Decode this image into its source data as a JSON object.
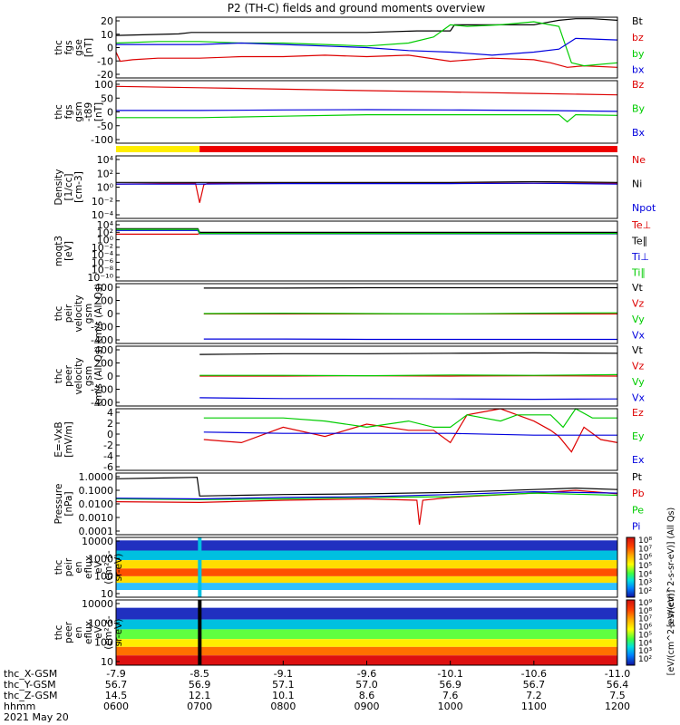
{
  "title": "P2 (TH-C) fields and ground moments overview",
  "chart_data": [
    {
      "type": "line",
      "ylabel": [
        "thc",
        "fgs",
        "gse",
        "[nT]"
      ],
      "ylim": [
        -20,
        20
      ],
      "yticks": [
        "20",
        "10",
        "0",
        "-10",
        "-20"
      ],
      "series": [
        {
          "name": "Bt",
          "color": "#000000",
          "x": [
            6.0,
            6.75,
            6.9,
            7.5,
            8.0,
            9.0,
            9.6,
            10.0,
            10.05,
            10.5,
            11.0,
            11.1,
            11.3,
            11.5,
            11.7,
            12.0
          ],
          "y": [
            8,
            9,
            10,
            10,
            10,
            10,
            11,
            11,
            15,
            15,
            15,
            16,
            18,
            19,
            19,
            18
          ]
        },
        {
          "name": "bz",
          "color": "#dd0000",
          "x": [
            6.0,
            6.05,
            6.2,
            6.5,
            7.0,
            7.5,
            8.0,
            8.5,
            9.0,
            9.5,
            10.0,
            10.5,
            11.0,
            11.2,
            11.4,
            11.6,
            12.0
          ],
          "y": [
            -3,
            -9,
            -8,
            -7,
            -7,
            -6,
            -6,
            -5,
            -6,
            -5,
            -9,
            -7,
            -8,
            -10,
            -13,
            -12,
            -13
          ]
        },
        {
          "name": "by",
          "color": "#00cc00",
          "x": [
            6.0,
            6.5,
            7.0,
            7.5,
            8.0,
            8.5,
            9.0,
            9.5,
            9.8,
            10.0,
            10.2,
            10.6,
            11.0,
            11.3,
            11.45,
            11.6,
            12.0
          ],
          "y": [
            3,
            4,
            4,
            3,
            3,
            2,
            1,
            3,
            7,
            15,
            14,
            15,
            17,
            14,
            -10,
            -12,
            -10
          ]
        },
        {
          "name": "bx",
          "color": "#0000dd",
          "x": [
            6.0,
            6.5,
            7.0,
            7.5,
            8.0,
            8.5,
            9.0,
            9.5,
            10.0,
            10.5,
            11.0,
            11.3,
            11.5,
            12.0
          ],
          "y": [
            2,
            2,
            2,
            3,
            2,
            1,
            0,
            -2,
            -3,
            -5,
            -3,
            -1,
            6,
            5
          ]
        }
      ]
    },
    {
      "type": "line",
      "ylabel": [
        "thc",
        "fgs",
        "gsm",
        "-t89",
        "[nT]"
      ],
      "ylim": [
        -120,
        100
      ],
      "yticks": [
        "100",
        "50",
        "0",
        "-50",
        "-100"
      ],
      "series": [
        {
          "name": "Bz",
          "color": "#dd0000",
          "x": [
            6.0,
            7.0,
            8.0,
            9.0,
            10.0,
            11.0,
            12.0
          ],
          "y": [
            80,
            75,
            70,
            65,
            60,
            55,
            50
          ]
        },
        {
          "name": "By",
          "color": "#00cc00",
          "x": [
            6.0,
            7.0,
            8.0,
            9.0,
            10.0,
            11.0,
            11.3,
            11.4,
            11.5,
            12.0
          ],
          "y": [
            -30,
            -30,
            -25,
            -20,
            -20,
            -20,
            -20,
            -45,
            -20,
            -22
          ]
        },
        {
          "name": "Bx",
          "color": "#0000dd",
          "x": [
            6.0,
            7.0,
            8.0,
            9.0,
            10.0,
            11.0,
            12.0
          ],
          "y": [
            -5,
            -5,
            -3,
            -2,
            -3,
            -5,
            -8
          ]
        }
      ]
    },
    {
      "type": "line",
      "scale": "log",
      "ylabel": [
        "Density",
        "[1/cc]",
        "[cm-3]"
      ],
      "ylim": [
        -4,
        4
      ],
      "yticks": [
        "10⁴",
        "10²",
        "10⁰",
        "10⁻²",
        "10⁻⁴"
      ],
      "series": [
        {
          "name": "Ne",
          "color": "#dd0000",
          "x": [
            6.0,
            6.95,
            7.0,
            7.05,
            7.1,
            7.2,
            8.0,
            9.0,
            10.0,
            11.0,
            12.0
          ],
          "y": [
            0.4,
            0.5,
            -2,
            0.3,
            0.5,
            0.5,
            0.5,
            0.5,
            0.5,
            0.5,
            0.5
          ]
        },
        {
          "name": "Ni",
          "color": "#000000",
          "x": [
            6.0,
            7.0,
            8.0,
            9.0,
            10.0,
            11.0,
            12.0
          ],
          "y": [
            0.6,
            0.6,
            0.6,
            0.6,
            0.6,
            0.7,
            0.6
          ]
        },
        {
          "name": "Npot",
          "color": "#0000dd",
          "x": [
            6.0,
            7.0,
            8.0,
            9.0,
            10.0,
            11.0,
            12.0
          ],
          "y": [
            0.4,
            0.4,
            0.45,
            0.45,
            0.45,
            0.5,
            0.4
          ]
        }
      ]
    },
    {
      "type": "line",
      "scale": "log",
      "ylabel": [
        "moqt3",
        "[eV]"
      ],
      "ylim": [
        -12,
        4
      ],
      "yticks": [
        "10⁴",
        "10²",
        "10⁰",
        "10⁻²",
        "10⁻⁴",
        "10⁻⁶",
        "10⁻⁸",
        "10⁻¹⁰"
      ],
      "series": [
        {
          "name": "Te⊥",
          "color": "#dd0000",
          "x": [
            6.0,
            6.98,
            7.0,
            12.0
          ],
          "y": [
            0.5,
            0.5,
            0.8,
            0.8
          ]
        },
        {
          "name": "Te∥",
          "color": "#000000",
          "x": [
            6.0,
            6.98,
            7.0,
            12.0
          ],
          "y": [
            2.0,
            2.0,
            1.0,
            1.0
          ]
        },
        {
          "name": "Ti⊥",
          "color": "#0000dd",
          "x": [
            6.0,
            6.98,
            7.0,
            12.0
          ],
          "y": [
            1.5,
            1.5,
            0.6,
            0.6
          ]
        },
        {
          "name": "Ti∥",
          "color": "#00cc00",
          "x": [
            6.0,
            6.98,
            7.0,
            12.0
          ],
          "y": [
            1.8,
            1.8,
            0.7,
            0.7
          ]
        }
      ]
    },
    {
      "type": "line",
      "ylabel": [
        "thc",
        "peir",
        "velocity",
        "gsm",
        "km/s (All Qs)"
      ],
      "ylim": [
        -400,
        400
      ],
      "yticks": [
        "400",
        "200",
        "0",
        "-200",
        "-400"
      ],
      "series": [
        {
          "name": "Vt",
          "color": "#000000",
          "x": [
            7.05,
            8.0,
            9.0,
            10.0,
            11.0,
            12.0
          ],
          "y": [
            340,
            340,
            345,
            345,
            345,
            345
          ]
        },
        {
          "name": "Vz",
          "color": "#dd0000",
          "x": [
            7.05,
            8.0,
            9.0,
            10.0,
            11.0,
            12.0
          ],
          "y": [
            -5,
            -5,
            -5,
            -5,
            -5,
            -5
          ]
        },
        {
          "name": "Vy",
          "color": "#00cc00",
          "x": [
            7.05,
            8.0,
            9.0,
            10.0,
            11.0,
            12.0
          ],
          "y": [
            0,
            5,
            0,
            -5,
            5,
            10
          ]
        },
        {
          "name": "Vx",
          "color": "#0000dd",
          "x": [
            7.05,
            8.0,
            9.0,
            10.0,
            11.0,
            12.0
          ],
          "y": [
            -340,
            -340,
            -345,
            -345,
            -345,
            -345
          ]
        }
      ]
    },
    {
      "type": "line",
      "ylabel": [
        "thc",
        "peer",
        "velocity",
        "gsm",
        "km/s (All Qs)"
      ],
      "ylim": [
        -400,
        400
      ],
      "yticks": [
        "400",
        "200",
        "0",
        "-200",
        "-400"
      ],
      "series": [
        {
          "name": "Vt",
          "color": "#000000",
          "x": [
            7.0,
            8.0,
            9.0,
            10.0,
            11.0,
            12.0
          ],
          "y": [
            290,
            300,
            300,
            305,
            310,
            305
          ]
        },
        {
          "name": "Vz",
          "color": "#dd0000",
          "x": [
            7.0,
            8.0,
            9.0,
            10.0,
            11.0,
            12.0
          ],
          "y": [
            0,
            0,
            5,
            0,
            5,
            0
          ]
        },
        {
          "name": "Vy",
          "color": "#00cc00",
          "x": [
            7.0,
            8.0,
            9.0,
            10.0,
            11.0,
            12.0
          ],
          "y": [
            10,
            10,
            5,
            15,
            10,
            20
          ]
        },
        {
          "name": "Vx",
          "color": "#0000dd",
          "x": [
            7.0,
            8.0,
            9.0,
            10.0,
            11.0,
            12.0
          ],
          "y": [
            -290,
            -300,
            -300,
            -305,
            -310,
            -305
          ]
        }
      ]
    },
    {
      "type": "line",
      "ylabel": [
        "E=-VxB",
        "[mV/m]"
      ],
      "ylim": [
        -6,
        4
      ],
      "yticks": [
        "4",
        "2",
        "0",
        "-2",
        "-4",
        "-6"
      ],
      "series": [
        {
          "name": "Ez",
          "color": "#dd0000",
          "x": [
            7.05,
            7.5,
            8.0,
            8.5,
            9.0,
            9.5,
            9.8,
            10.0,
            10.2,
            10.4,
            10.6,
            10.8,
            11.0,
            11.2,
            11.3,
            11.45,
            11.6,
            11.8,
            12.0
          ],
          "y": [
            -1,
            -1.5,
            1,
            -0.5,
            1.5,
            0.5,
            0.5,
            -1.5,
            3,
            3.5,
            4,
            3,
            2,
            0.5,
            -0.5,
            -3,
            1,
            -1,
            -1.5
          ]
        },
        {
          "name": "Ey",
          "color": "#00cc00",
          "x": [
            7.05,
            7.5,
            8.0,
            8.5,
            9.0,
            9.5,
            9.8,
            10.0,
            10.2,
            10.4,
            10.6,
            10.8,
            11.0,
            11.2,
            11.35,
            11.5,
            11.7,
            12.0
          ],
          "y": [
            2.5,
            2.5,
            2.5,
            2,
            1,
            2,
            1,
            1,
            3,
            2.5,
            2,
            3,
            3,
            3,
            1,
            4,
            2.5,
            2.5
          ]
        },
        {
          "name": "Ex",
          "color": "#0000dd",
          "x": [
            7.05,
            8.0,
            9.0,
            10.0,
            11.0,
            12.0
          ],
          "y": [
            0.2,
            0,
            0,
            0,
            -0.3,
            -0.3
          ]
        }
      ]
    },
    {
      "type": "line",
      "scale": "log",
      "ylabel": [
        "Pressure",
        "[nPa]"
      ],
      "ylim": [
        -4,
        0.3
      ],
      "yticks": [
        "1.0000",
        "0.1000",
        "0.0100",
        "0.0010",
        "0.0001"
      ],
      "series": [
        {
          "name": "Pt",
          "color": "#000000",
          "x": [
            6.0,
            6.5,
            6.97,
            7.0,
            7.5,
            8.0,
            9.0,
            10.0,
            11.0,
            11.5,
            12.0
          ],
          "y": [
            -0.1,
            -0.05,
            0,
            -1.3,
            -1.25,
            -1.2,
            -1.15,
            -1.05,
            -0.85,
            -0.75,
            -0.85
          ]
        },
        {
          "name": "Pb",
          "color": "#dd0000",
          "x": [
            6.0,
            7.0,
            8.0,
            9.0,
            9.6,
            9.63,
            9.67,
            10.0,
            11.0,
            11.5,
            12.0
          ],
          "y": [
            -1.7,
            -1.75,
            -1.6,
            -1.5,
            -1.6,
            -3.3,
            -1.6,
            -1.4,
            -1.1,
            -0.9,
            -1.15
          ]
        },
        {
          "name": "Pe",
          "color": "#00cc00",
          "x": [
            6.0,
            7.0,
            8.0,
            9.0,
            10.0,
            11.0,
            12.0
          ],
          "y": [
            -1.5,
            -1.55,
            -1.5,
            -1.4,
            -1.35,
            -1.1,
            -1.25
          ]
        },
        {
          "name": "Pi",
          "color": "#0000dd",
          "x": [
            6.0,
            7.0,
            8.0,
            9.0,
            10.0,
            11.0,
            12.0
          ],
          "y": [
            -1.45,
            -1.5,
            -1.4,
            -1.35,
            -1.2,
            -1.0,
            -1.1
          ]
        }
      ]
    },
    {
      "type": "heatmap",
      "ylabel": [
        "thc",
        "peir",
        "en",
        "eflux",
        "eV",
        "(cm²-s-",
        "sr-eV)"
      ],
      "ylim": [
        10,
        10000
      ],
      "yticks": [
        "10000",
        "1000",
        "100",
        "10"
      ],
      "zlabel": "[eV/(cm^2-s-sr-eV)] (All Qs)",
      "zticks": [
        "10⁸",
        "10⁷",
        "10⁶",
        "10⁵",
        "10⁴",
        "10³",
        "10²"
      ]
    },
    {
      "type": "heatmap",
      "ylabel": [
        "thc",
        "peer",
        "en",
        "eflux",
        "eV",
        "(cm²-s-",
        "sr-eV)"
      ],
      "ylim": [
        10,
        10000
      ],
      "yticks": [
        "10000",
        "1000",
        "100",
        "10"
      ],
      "zlabel": "[eV/(cm^2-s-sr-eV)]",
      "zticks": [
        "10⁹",
        "10⁸",
        "10⁷",
        "10⁶",
        "10⁵",
        "10⁴",
        "10³",
        "10²"
      ]
    }
  ],
  "x_axis": {
    "xlim": [
      6.0,
      12.0
    ],
    "ticks": [
      {
        "X": "-7.9",
        "Y": "56.7",
        "Z": "14.5",
        "hhmm": "0600"
      },
      {
        "X": "-8.5",
        "Y": "56.9",
        "Z": "12.1",
        "hhmm": "0700"
      },
      {
        "X": "-9.1",
        "Y": "57.1",
        "Z": "10.1",
        "hhmm": "0800"
      },
      {
        "X": "-9.6",
        "Y": "57.0",
        "Z": "8.6",
        "hhmm": "0900"
      },
      {
        "X": "-10.1",
        "Y": "56.9",
        "Z": "7.6",
        "hhmm": "1000"
      },
      {
        "X": "-10.6",
        "Y": "56.7",
        "Z": "7.2",
        "hhmm": "1100"
      },
      {
        "X": "-11.0",
        "Y": "56.4",
        "Z": "7.5",
        "hhmm": "1200"
      }
    ],
    "row_labels": [
      "thc_X-GSM",
      "thc_Y-GSM",
      "thc_Z-GSM",
      "hhmm"
    ],
    "date": "2021 May 20"
  },
  "mode_bar": {
    "colors": {
      "slow": "#ffee00",
      "fast": "#ee0000"
    },
    "switch_time": 7.0
  }
}
